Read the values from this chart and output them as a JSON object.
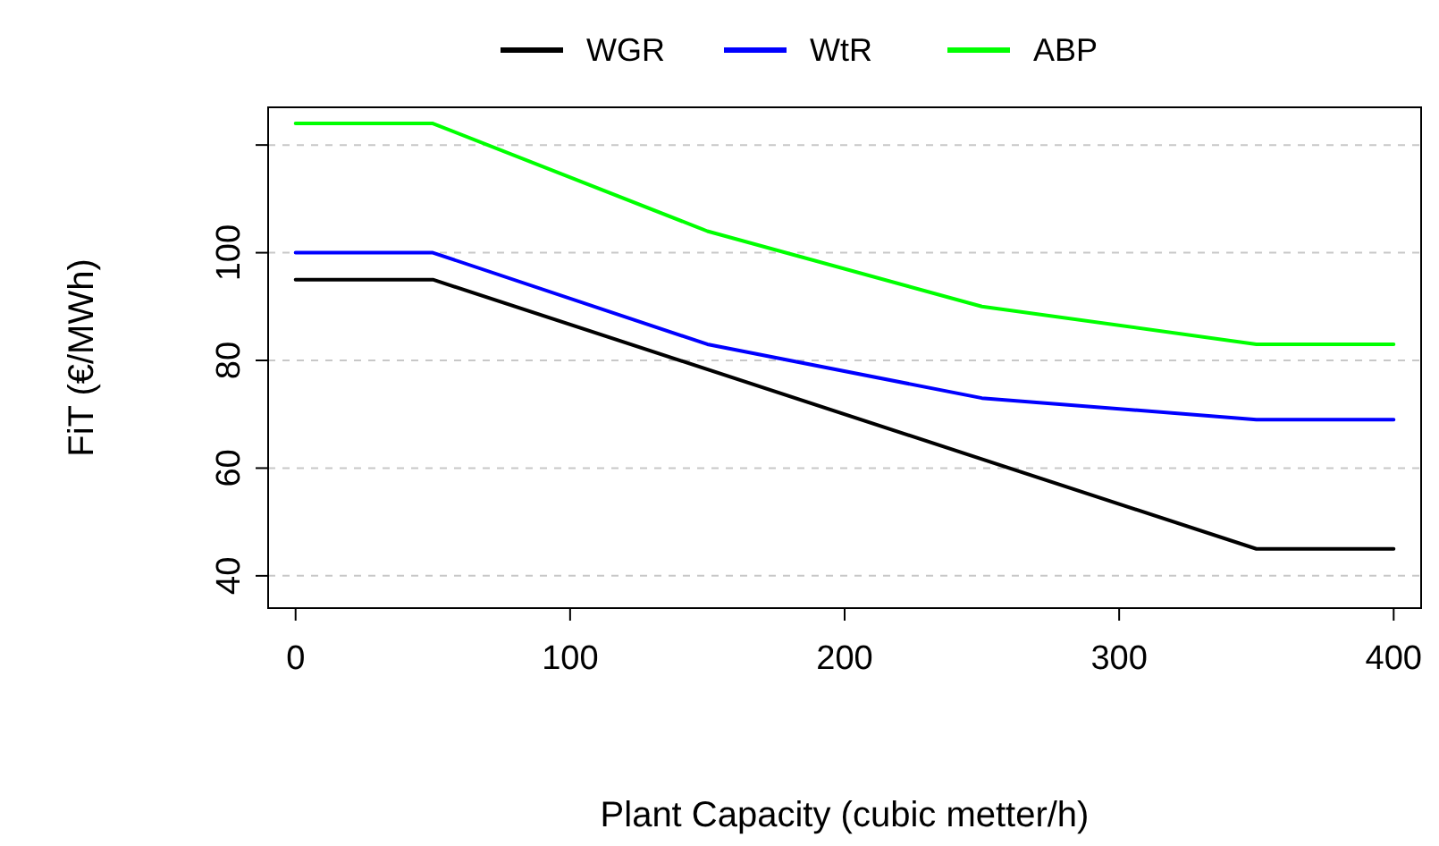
{
  "chart_data": {
    "type": "line",
    "xlabel": "Plant Capacity (cubic metter/h)",
    "ylabel": "FiT (€/MWh)",
    "xlim": [
      -10,
      410
    ],
    "ylim": [
      34,
      127
    ],
    "xticks": [
      0,
      100,
      200,
      300,
      400
    ],
    "yticks": [
      40,
      60,
      80,
      100,
      {
        "value": 120,
        "label": null
      }
    ],
    "grid": "y",
    "legend": "top",
    "line_style": "solid",
    "marker": "none",
    "series": [
      {
        "name": "WGR",
        "color": "#000000",
        "x": [
          0,
          50,
          350,
          400
        ],
        "values": [
          95,
          95,
          45,
          45
        ]
      },
      {
        "name": "WtR",
        "color": "#0000ff",
        "x": [
          0,
          50,
          150,
          250,
          350,
          400
        ],
        "values": [
          100,
          100,
          83,
          73,
          69,
          69
        ]
      },
      {
        "name": "ABP",
        "color": "#00ff00",
        "x": [
          0,
          50,
          150,
          250,
          350,
          400
        ],
        "values": [
          124,
          124,
          104,
          90,
          83,
          83
        ]
      }
    ]
  }
}
